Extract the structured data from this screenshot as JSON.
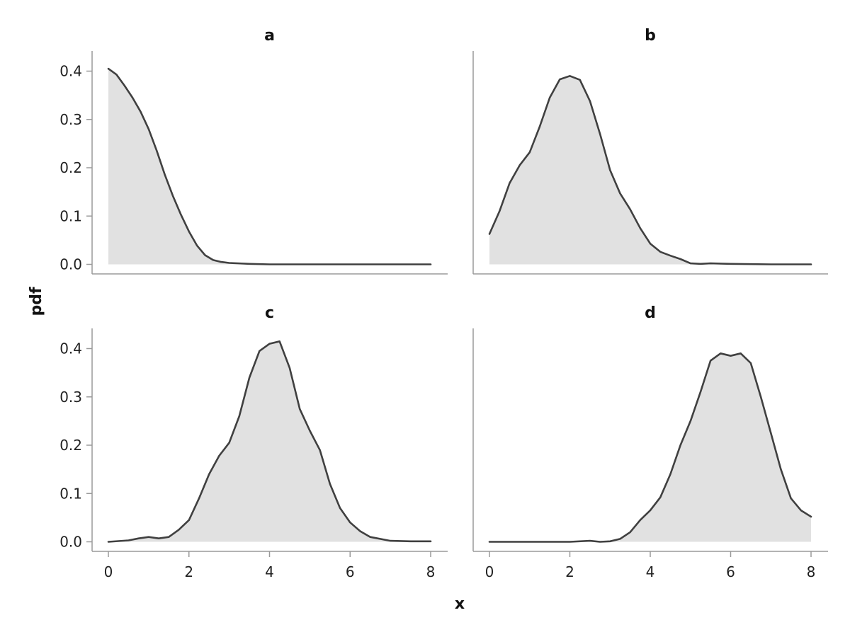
{
  "chart_data": {
    "type": "area",
    "xlabel": "x",
    "ylabel": "pdf",
    "xlim": [
      0,
      8
    ],
    "ylim": [
      0,
      0.42
    ],
    "x_ticks": [
      "0",
      "2",
      "4",
      "6",
      "8"
    ],
    "y_ticks": [
      "0.0",
      "0.1",
      "0.2",
      "0.3",
      "0.4"
    ],
    "fill_color": "#e1e1e1",
    "line_color": "#404040",
    "grid": false,
    "layout": "2x2 facets, shared axes",
    "panels": [
      {
        "title": "a",
        "x": [
          0,
          0.2,
          0.4,
          0.6,
          0.8,
          1.0,
          1.2,
          1.4,
          1.6,
          1.8,
          2.0,
          2.2,
          2.4,
          2.6,
          2.8,
          3.0,
          3.5,
          4.0,
          5.0,
          6.0,
          7.0,
          8.0
        ],
        "y": [
          0.405,
          0.393,
          0.37,
          0.345,
          0.316,
          0.28,
          0.235,
          0.186,
          0.142,
          0.103,
          0.068,
          0.039,
          0.019,
          0.009,
          0.005,
          0.003,
          0.001,
          0.0,
          0.0,
          0.0,
          0.0,
          0.0
        ]
      },
      {
        "title": "b",
        "x": [
          0,
          0.25,
          0.5,
          0.75,
          1.0,
          1.25,
          1.5,
          1.75,
          2.0,
          2.25,
          2.5,
          2.75,
          3.0,
          3.25,
          3.5,
          3.75,
          4.0,
          4.25,
          4.5,
          4.75,
          5.0,
          5.25,
          5.5,
          6.0,
          7.0,
          8.0
        ],
        "y": [
          0.063,
          0.11,
          0.168,
          0.205,
          0.232,
          0.285,
          0.345,
          0.383,
          0.39,
          0.382,
          0.338,
          0.27,
          0.195,
          0.147,
          0.114,
          0.075,
          0.043,
          0.026,
          0.018,
          0.011,
          0.002,
          0.001,
          0.002,
          0.001,
          0.0,
          0.0
        ]
      },
      {
        "title": "c",
        "x": [
          0,
          0.5,
          0.75,
          1.0,
          1.25,
          1.5,
          1.75,
          2.0,
          2.25,
          2.5,
          2.75,
          3.0,
          3.25,
          3.5,
          3.75,
          4.0,
          4.25,
          4.5,
          4.75,
          5.0,
          5.25,
          5.5,
          5.75,
          6.0,
          6.25,
          6.5,
          7.0,
          7.5,
          8.0
        ],
        "y": [
          0.0,
          0.003,
          0.007,
          0.01,
          0.007,
          0.01,
          0.025,
          0.045,
          0.09,
          0.14,
          0.178,
          0.205,
          0.26,
          0.34,
          0.395,
          0.41,
          0.415,
          0.36,
          0.275,
          0.23,
          0.19,
          0.12,
          0.07,
          0.04,
          0.022,
          0.01,
          0.002,
          0.001,
          0.001
        ]
      },
      {
        "title": "d",
        "x": [
          0,
          1.0,
          2.0,
          2.5,
          2.75,
          3.0,
          3.25,
          3.5,
          3.75,
          4.0,
          4.25,
          4.5,
          4.75,
          5.0,
          5.25,
          5.5,
          5.75,
          6.0,
          6.25,
          6.5,
          6.75,
          7.0,
          7.25,
          7.5,
          7.75,
          8.0
        ],
        "y": [
          0.0,
          0.0,
          0.0,
          0.002,
          0.0,
          0.001,
          0.006,
          0.02,
          0.045,
          0.065,
          0.092,
          0.14,
          0.2,
          0.25,
          0.31,
          0.375,
          0.39,
          0.385,
          0.39,
          0.37,
          0.3,
          0.225,
          0.15,
          0.09,
          0.065,
          0.052
        ]
      }
    ]
  }
}
